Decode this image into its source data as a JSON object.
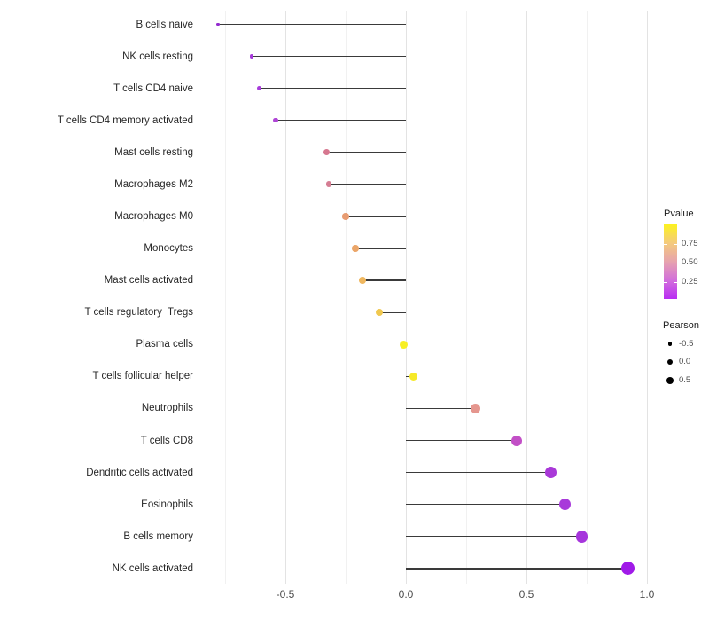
{
  "chart_data": {
    "type": "lollipop",
    "orientation": "horizontal",
    "title": "",
    "xlabel": "",
    "ylabel": "",
    "xlim": [
      -0.87,
      1.01
    ],
    "x_major_ticks": [
      -0.5,
      0.0,
      0.5,
      1.0
    ],
    "x_tick_labels": [
      "-0.5",
      "0.0",
      "0.5",
      "1.0"
    ],
    "x_minor_ticks": [
      -0.75,
      -0.25,
      0.25,
      0.75
    ],
    "grid": "vertical major and minor gridlines only, white background",
    "legend_position": "right",
    "color_encodes": "Pvalue",
    "size_encodes": "Pearson",
    "categories": [
      "B cells naive",
      "NK cells resting",
      "T cells CD4 naive",
      "T cells CD4 memory activated",
      "Mast cells resting",
      "Macrophages M2",
      "Macrophages M0",
      "Monocytes",
      "Mast cells activated",
      "T cells regulatory  Tregs",
      "Plasma cells",
      "T cells follicular helper",
      "Neutrophils",
      "T cells CD8",
      "Dendritic cells activated",
      "Eosinophils",
      "B cells memory",
      "NK cells activated"
    ],
    "series": [
      {
        "name": "Pearson",
        "values": [
          -0.78,
          -0.64,
          -0.61,
          -0.54,
          -0.33,
          -0.32,
          -0.25,
          -0.21,
          -0.18,
          -0.11,
          -0.01,
          0.03,
          0.29,
          0.46,
          0.6,
          0.66,
          0.73,
          0.92
        ],
        "point_colors": [
          "#9329CF",
          "#A63ADA",
          "#A73CDB",
          "#AF46D6",
          "#D6778F",
          "#D57D93",
          "#E89C72",
          "#EBA669",
          "#EFB75F",
          "#F0C84F",
          "#F7EF25",
          "#F6E928",
          "#E5968E",
          "#C24FC6",
          "#A939D8",
          "#A839DA",
          "#A635DC",
          "#A01AE8"
        ]
      }
    ]
  },
  "legend": {
    "pvalue": {
      "title": "Pvalue",
      "tick_labels": [
        "0.75",
        "0.50",
        "0.25"
      ],
      "gradient_top_to_bottom": [
        "#FCF21F",
        "#F4CA7D",
        "#E7A3AE",
        "#D26EDC",
        "#B92DF3"
      ]
    },
    "pearson": {
      "title": "Pearson",
      "items": [
        {
          "label": "-0.5",
          "value": -0.5
        },
        {
          "label": "0.0",
          "value": 0.0
        },
        {
          "label": "0.5",
          "value": 0.5
        }
      ]
    }
  }
}
